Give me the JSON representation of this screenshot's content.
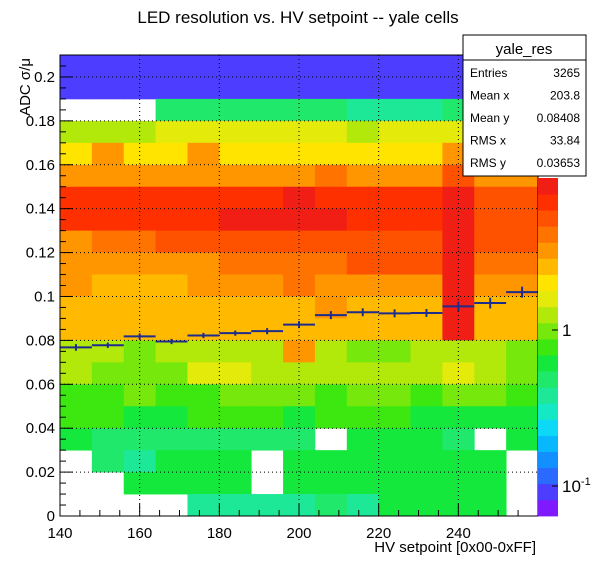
{
  "chart_data": {
    "type": "heatmap",
    "title": "LED resolution vs. HV setpoint -- yale cells",
    "xlabel": "HV setpoint [0x00-0xFF]",
    "ylabel": "ADC σ/μ",
    "xlim": [
      140,
      260
    ],
    "ylim": [
      0,
      0.21
    ],
    "x_bin_width": 8,
    "y_bin_width": 0.01,
    "x_ticks": [
      140,
      160,
      180,
      200,
      220,
      240
    ],
    "x_tick_labels": [
      "140",
      "160",
      "180",
      "200",
      "220",
      "240"
    ],
    "y_ticks": [
      0,
      0.02,
      0.04,
      0.06,
      0.08,
      0.1,
      0.12,
      0.14,
      0.16,
      0.18,
      0.2
    ],
    "y_tick_labels": [
      "0",
      "0.02",
      "0.04",
      "0.06",
      "0.08",
      "0.1",
      "0.12",
      "0.14",
      "0.16",
      "0.18",
      "0.2"
    ],
    "grid": true,
    "colorbar": {
      "scale": "log",
      "tick_labels": [
        "10",
        "1",
        "10"
      ],
      "tick_exponents": [
        "",
        "",
        "-1"
      ],
      "colors": [
        "#7f1aff",
        "#4c3dff",
        "#2a6aff",
        "#1390ff",
        "#08b8ff",
        "#0bd9f5",
        "#15e8c4",
        "#1de897",
        "#20e86a",
        "#14e83c",
        "#3ce810",
        "#76e80c",
        "#b2e80a",
        "#e4ea0a",
        "#ffe400",
        "#ffba00",
        "#ff9600",
        "#ff7400",
        "#ff5200",
        "#ff3000",
        "#f01e14"
      ]
    },
    "stats": {
      "title": "yale_res",
      "rows": [
        {
          "label": "Entries",
          "value": "3265"
        },
        {
          "label": "Mean x",
          "value": "203.8"
        },
        {
          "label": "Mean y",
          "value": "0.08408"
        },
        {
          "label": "RMS x",
          "value": "33.84"
        },
        {
          "label": "RMS y",
          "value": "0.03653"
        }
      ]
    },
    "cells": [
      [
        1,
        1,
        1,
        1,
        1,
        1,
        1,
        1,
        1,
        1,
        1,
        1,
        1,
        1,
        1
      ],
      [
        1,
        1,
        1,
        1,
        1,
        1,
        1,
        1,
        1,
        1,
        1,
        1,
        1,
        1,
        1
      ],
      [
        0,
        0,
        0,
        8,
        8,
        8,
        8,
        8,
        8,
        7,
        7,
        7,
        8,
        9,
        0
      ],
      [
        12,
        12,
        12,
        13,
        13,
        13,
        13,
        13,
        13,
        12,
        13,
        13,
        13,
        13,
        0
      ],
      [
        14,
        16,
        14,
        14,
        16,
        14,
        14,
        14,
        14,
        14,
        14,
        14,
        16,
        14,
        0
      ],
      [
        16,
        16,
        16,
        16,
        16,
        16,
        16,
        16,
        17,
        16,
        16,
        16,
        18,
        16,
        16
      ],
      [
        19,
        19,
        19,
        19,
        19,
        19,
        19,
        20,
        19,
        19,
        19,
        19,
        20,
        18,
        18
      ],
      [
        19,
        19,
        19,
        19,
        19,
        20,
        20,
        20,
        20,
        19,
        19,
        19,
        20,
        18,
        18
      ],
      [
        16,
        17,
        17,
        18,
        18,
        18,
        18,
        18,
        18,
        18,
        18,
        18,
        20,
        18,
        18
      ],
      [
        16,
        16,
        16,
        16,
        16,
        17,
        17,
        17,
        17,
        18,
        18,
        18,
        20,
        17,
        17
      ],
      [
        16,
        15,
        15,
        15,
        16,
        16,
        16,
        17,
        16,
        16,
        16,
        16,
        20,
        16,
        16
      ],
      [
        15,
        15,
        15,
        15,
        15,
        15,
        15,
        15,
        16,
        15,
        15,
        15,
        20,
        15,
        15
      ],
      [
        15,
        15,
        15,
        15,
        15,
        15,
        15,
        15,
        15,
        15,
        15,
        15,
        20,
        15,
        15
      ],
      [
        12,
        12,
        11,
        12,
        12,
        12,
        12,
        16,
        12,
        11,
        11,
        12,
        12,
        12,
        11
      ],
      [
        12,
        11,
        11,
        11,
        13,
        13,
        12,
        12,
        12,
        12,
        12,
        12,
        13,
        12,
        11
      ],
      [
        10,
        10,
        11,
        10,
        10,
        11,
        11,
        11,
        10,
        11,
        11,
        10,
        11,
        11,
        10
      ],
      [
        10,
        10,
        9,
        9,
        10,
        10,
        10,
        9,
        10,
        10,
        10,
        9,
        9,
        9,
        9
      ],
      [
        9,
        8,
        8,
        8,
        8,
        8,
        8,
        8,
        0,
        9,
        9,
        9,
        8,
        0,
        9
      ],
      [
        0,
        8,
        7,
        9,
        9,
        9,
        0,
        9,
        9,
        9,
        9,
        9,
        9,
        9,
        0
      ],
      [
        0,
        0,
        9,
        9,
        9,
        9,
        0,
        9,
        9,
        9,
        9,
        9,
        9,
        9,
        0
      ],
      [
        0,
        0,
        0,
        0,
        7,
        7,
        7,
        7,
        8,
        7,
        9,
        9,
        9,
        9,
        0
      ]
    ],
    "profile": {
      "x": [
        144,
        152,
        160,
        168,
        176,
        184,
        192,
        200,
        208,
        216,
        224,
        232,
        240,
        248,
        256
      ],
      "y": [
        0.0768,
        0.0778,
        0.0818,
        0.0795,
        0.0822,
        0.0833,
        0.0842,
        0.0872,
        0.0915,
        0.0928,
        0.0923,
        0.0925,
        0.0955,
        0.097,
        0.102
      ],
      "yerr": [
        0.0015,
        0.0012,
        0.0014,
        0.0012,
        0.0012,
        0.0012,
        0.0014,
        0.0016,
        0.0018,
        0.0018,
        0.0018,
        0.0018,
        0.0022,
        0.0025,
        0.0025
      ]
    }
  }
}
